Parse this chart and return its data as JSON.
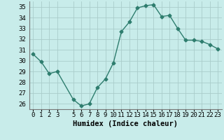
{
  "x": [
    0,
    1,
    2,
    3,
    5,
    6,
    7,
    8,
    9,
    10,
    11,
    12,
    13,
    14,
    15,
    16,
    17,
    18,
    19,
    20,
    21,
    22,
    23
  ],
  "y": [
    30.6,
    29.9,
    28.8,
    29.0,
    26.4,
    25.8,
    26.0,
    27.5,
    28.3,
    29.8,
    32.7,
    33.6,
    34.9,
    35.1,
    35.2,
    34.1,
    34.2,
    33.0,
    31.9,
    31.9,
    31.8,
    31.5,
    31.1
  ],
  "line_color": "#2e7d6e",
  "marker": "D",
  "marker_size": 2.5,
  "bg_color": "#c8ecea",
  "grid_color": "#aaccca",
  "xlabel": "Humidex (Indice chaleur)",
  "ylim": [
    25.5,
    35.5
  ],
  "yticks": [
    26,
    27,
    28,
    29,
    30,
    31,
    32,
    33,
    34,
    35
  ],
  "xticks": [
    0,
    1,
    2,
    3,
    5,
    6,
    7,
    8,
    9,
    10,
    11,
    12,
    13,
    14,
    15,
    16,
    17,
    18,
    19,
    20,
    21,
    22,
    23
  ],
  "xlabel_fontsize": 7.5,
  "tick_fontsize": 6.5,
  "line_width": 1.0
}
